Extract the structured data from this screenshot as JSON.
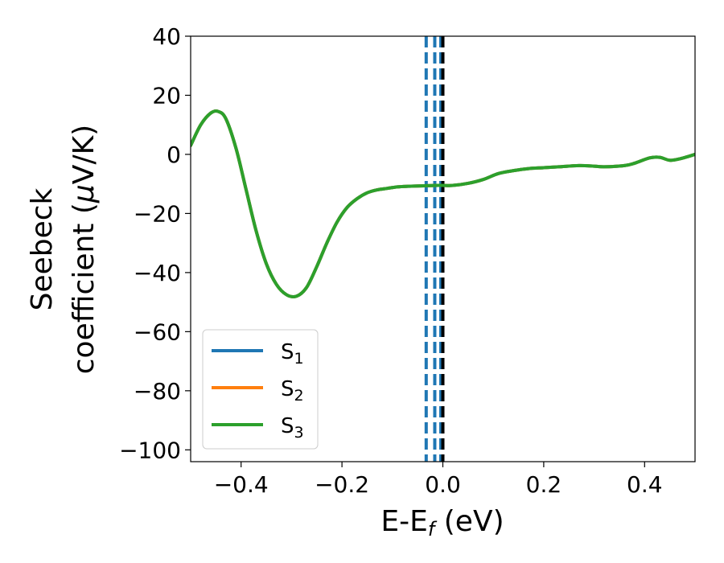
{
  "chart_data": {
    "type": "line",
    "title": "",
    "xlabel": {
      "main": "E-E",
      "sub": "f",
      "tail": " (eV)"
    },
    "ylabel": {
      "line1": "Seebeck",
      "line2_prefix": "coefficient  (",
      "line2_mu": "μ",
      "line2_suffix": "V/K)"
    },
    "xlim": [
      -0.5,
      0.5
    ],
    "ylim": [
      -104,
      40
    ],
    "xticks": [
      -0.4,
      -0.2,
      0.0,
      0.2,
      0.4
    ],
    "xtick_labels": [
      "−0.4",
      "−0.2",
      "0.0",
      "0.2",
      "0.4"
    ],
    "yticks": [
      40,
      20,
      0,
      -20,
      -40,
      -60,
      -80,
      -100
    ],
    "ytick_labels": [
      "40",
      "20",
      "0",
      "−20",
      "−40",
      "−60",
      "−80",
      "−100"
    ],
    "grid": false,
    "legend_position": "lower-left",
    "series": [
      {
        "name": "S",
        "sub": "1",
        "color": "#1f77b4"
      },
      {
        "name": "S",
        "sub": "2",
        "color": "#ff7f0e"
      },
      {
        "name": "S",
        "sub": "3",
        "color": "#2ca02c"
      }
    ],
    "curve": {
      "series_index": 2,
      "x": [
        -0.5,
        -0.48,
        -0.46,
        -0.445,
        -0.43,
        -0.41,
        -0.39,
        -0.37,
        -0.35,
        -0.33,
        -0.31,
        -0.29,
        -0.27,
        -0.25,
        -0.23,
        -0.21,
        -0.19,
        -0.17,
        -0.15,
        -0.13,
        -0.11,
        -0.09,
        -0.07,
        -0.05,
        -0.03,
        -0.01,
        0.0,
        0.02,
        0.05,
        0.08,
        0.11,
        0.14,
        0.17,
        0.2,
        0.23,
        0.27,
        0.3,
        0.32,
        0.36,
        0.38,
        0.41,
        0.43,
        0.45,
        0.47,
        0.5
      ],
      "y": [
        3,
        10,
        14,
        14.5,
        12,
        2,
        -12,
        -26,
        -37,
        -44,
        -47.5,
        -48,
        -45,
        -38,
        -30,
        -23,
        -18,
        -15,
        -13,
        -12,
        -11.5,
        -11,
        -10.8,
        -10.7,
        -10.6,
        -10.5,
        -10.5,
        -10.5,
        -9.8,
        -8.5,
        -6.5,
        -5.5,
        -4.8,
        -4.5,
        -4.2,
        -3.8,
        -4.0,
        -4.2,
        -3.8,
        -3.0,
        -1.2,
        -1.0,
        -2.0,
        -1.5,
        0.0
      ]
    },
    "vlines": [
      {
        "x": -0.033,
        "color": "#1f77b4",
        "style": "dashed"
      },
      {
        "x": -0.016,
        "color": "#1f77b4",
        "style": "dashed"
      },
      {
        "x": -0.004,
        "color": "#1f77b4",
        "style": "dashed"
      },
      {
        "x": 0.0,
        "color": "#000000",
        "style": "dashed"
      }
    ]
  }
}
